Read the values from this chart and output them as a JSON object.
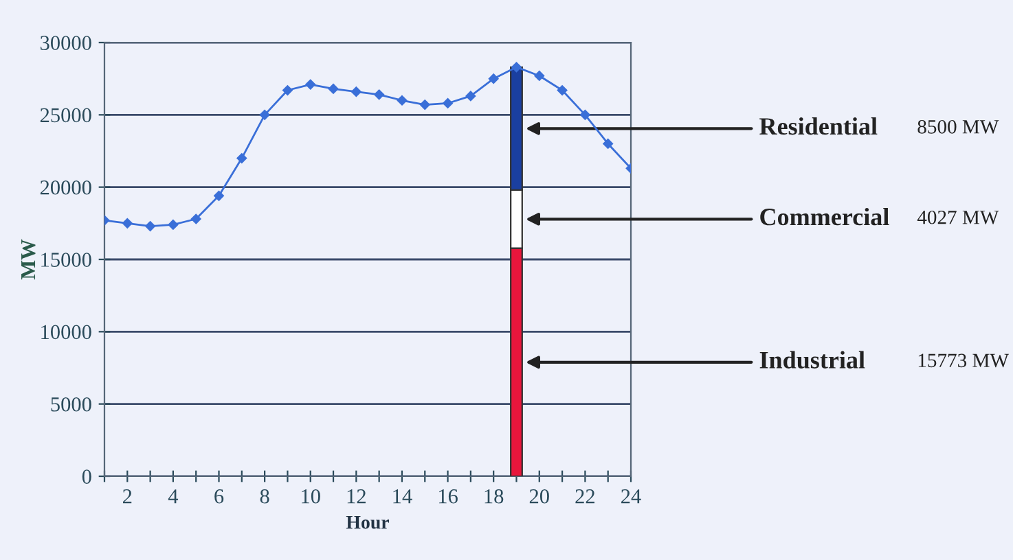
{
  "chart_data": {
    "type": "line",
    "xlabel": "Hour",
    "ylabel": "MW",
    "xlim": [
      1,
      24
    ],
    "ylim": [
      0,
      30000
    ],
    "xticks": [
      {
        "value": 1,
        "label": null
      },
      2,
      {
        "value": 3,
        "label": null
      },
      4,
      {
        "value": 5,
        "label": null
      },
      6,
      {
        "value": 7,
        "label": null
      },
      8,
      {
        "value": 9,
        "label": null
      },
      10,
      {
        "value": 11,
        "label": null
      },
      12,
      {
        "value": 13,
        "label": null
      },
      14,
      {
        "value": 15,
        "label": null
      },
      16,
      {
        "value": 17,
        "label": null
      },
      18,
      {
        "value": 19,
        "label": null
      },
      20,
      {
        "value": 21,
        "label": null
      },
      22,
      {
        "value": 23,
        "label": null
      },
      24
    ],
    "yticks": [
      0,
      5000,
      10000,
      15000,
      20000,
      25000,
      30000
    ],
    "grid": "y",
    "marker": "diamond",
    "line_style": "solid",
    "stacked": true,
    "series": [
      {
        "color": "#3a6fd8",
        "x": [
          1,
          2,
          3,
          4,
          5,
          6,
          7,
          8,
          9,
          10,
          11,
          12,
          13,
          14,
          15,
          16,
          17,
          18,
          19,
          20,
          21,
          22,
          23,
          24
        ],
        "values": [
          17700,
          17500,
          17300,
          17400,
          17800,
          19400,
          22000,
          25000,
          26700,
          27100,
          26800,
          26600,
          26400,
          26000,
          25700,
          25800,
          26300,
          27500,
          28300,
          27700,
          26700,
          25000,
          23000,
          21300
        ]
      },
      {
        "type": "bar",
        "name": "Industrial",
        "color": "#e8163c",
        "x": [
          19
        ],
        "values": [
          15773
        ]
      },
      {
        "type": "bar",
        "name": "Commercial",
        "color": "#ffffff",
        "x": [
          19
        ],
        "values": [
          4027
        ]
      },
      {
        "type": "bar",
        "name": "Residential",
        "color": "#1a3fa0",
        "x": [
          19
        ],
        "values": [
          8500
        ]
      }
    ],
    "annotations": [
      "15773 MW",
      "4027 MW",
      "8500 MW"
    ]
  }
}
